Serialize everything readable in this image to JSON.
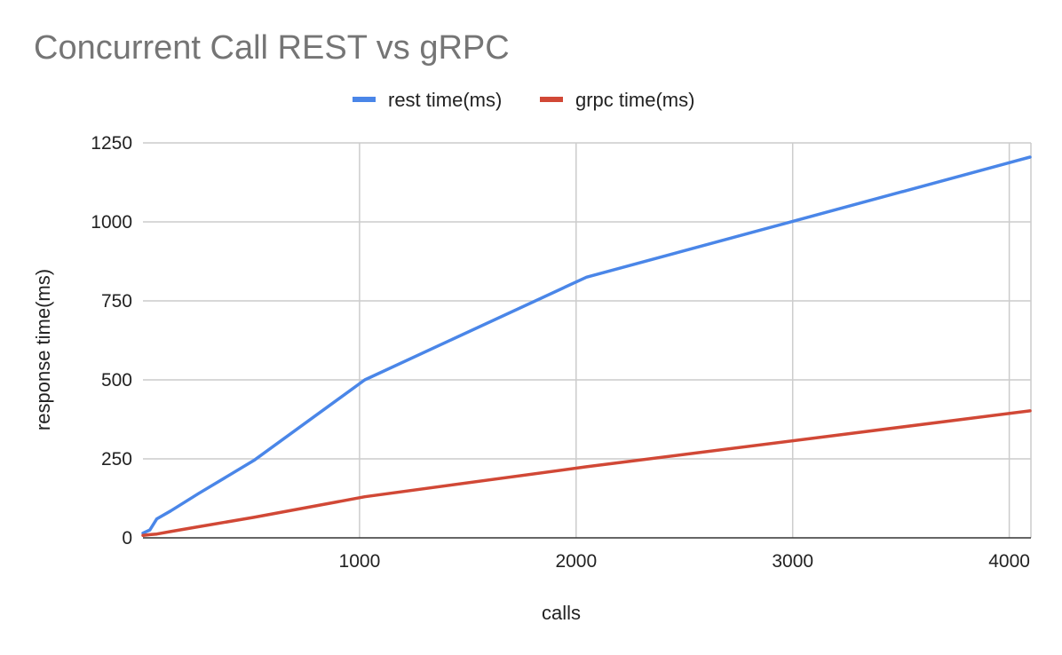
{
  "chart_data": {
    "type": "line",
    "title": "Concurrent Call REST vs gRPC",
    "xlabel": "calls",
    "ylabel": "response time(ms)",
    "xlim": [
      0,
      4100
    ],
    "ylim": [
      0,
      1250
    ],
    "x_ticks": [
      1000,
      2000,
      3000,
      4000
    ],
    "y_ticks": [
      0,
      250,
      500,
      750,
      1000,
      1250
    ],
    "grid": true,
    "legend_position": "top",
    "series": [
      {
        "name": "rest time(ms)",
        "color": "#4a86e8",
        "points": [
          [
            0,
            15
          ],
          [
            32,
            25
          ],
          [
            64,
            60
          ],
          [
            128,
            85
          ],
          [
            256,
            140
          ],
          [
            512,
            245
          ],
          [
            1024,
            500
          ],
          [
            2048,
            825
          ],
          [
            4096,
            1205
          ]
        ]
      },
      {
        "name": "grpc time(ms)",
        "color": "#d14836",
        "points": [
          [
            0,
            8
          ],
          [
            32,
            10
          ],
          [
            64,
            12
          ],
          [
            128,
            20
          ],
          [
            256,
            35
          ],
          [
            512,
            65
          ],
          [
            1024,
            130
          ],
          [
            2048,
            225
          ],
          [
            4096,
            402
          ]
        ]
      }
    ]
  }
}
